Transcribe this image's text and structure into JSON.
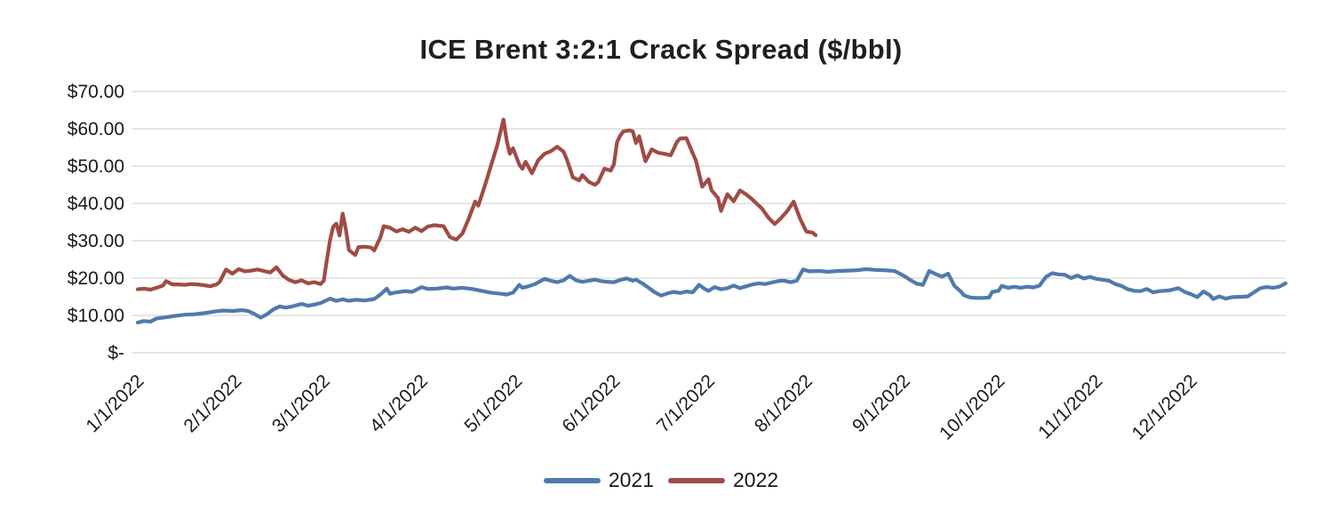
{
  "chart_data": {
    "type": "line",
    "title": "ICE Brent 3:2:1 Crack Spread ($/bbl)",
    "xlabel": "",
    "ylabel": "",
    "ylim": [
      0,
      70
    ],
    "grid": "horizontal-only",
    "legend_position": "bottom-center",
    "colors": {
      "gridline": "#d6d6d6",
      "axis_text": "#1a1a1a",
      "title_text": "#1f1f1f",
      "background": "#ffffff"
    },
    "y_ticks": [
      {
        "label": "$70.00",
        "value": 70
      },
      {
        "label": "$60.00",
        "value": 60
      },
      {
        "label": "$50.00",
        "value": 50
      },
      {
        "label": "$40.00",
        "value": 40
      },
      {
        "label": "$30.00",
        "value": 30
      },
      {
        "label": "$20.00",
        "value": 20
      },
      {
        "label": "$10.00",
        "value": 10
      },
      {
        "label": "$-",
        "value": 0
      }
    ],
    "x_ticks": [
      {
        "label": "1/1/2022",
        "day": 0
      },
      {
        "label": "2/1/2022",
        "day": 31
      },
      {
        "label": "3/1/2022",
        "day": 59
      },
      {
        "label": "4/1/2022",
        "day": 90
      },
      {
        "label": "5/1/2022",
        "day": 120
      },
      {
        "label": "6/1/2022",
        "day": 151
      },
      {
        "label": "7/1/2022",
        "day": 181
      },
      {
        "label": "8/1/2022",
        "day": 212
      },
      {
        "label": "9/1/2022",
        "day": 243
      },
      {
        "label": "10/1/2022",
        "day": 273
      },
      {
        "label": "11/1/2022",
        "day": 304
      },
      {
        "label": "12/1/2022",
        "day": 334
      }
    ],
    "x_domain_days": [
      0,
      364
    ],
    "series": [
      {
        "name": "2021",
        "color": "#4f7aad",
        "points": [
          [
            0,
            8.1
          ],
          [
            2,
            8.5
          ],
          [
            4,
            8.3
          ],
          [
            6,
            9.2
          ],
          [
            9,
            9.5
          ],
          [
            12,
            9.9
          ],
          [
            15,
            10.2
          ],
          [
            18,
            10.3
          ],
          [
            21,
            10.6
          ],
          [
            24,
            11.0
          ],
          [
            27,
            11.3
          ],
          [
            30,
            11.2
          ],
          [
            33,
            11.4
          ],
          [
            35,
            11.2
          ],
          [
            37,
            10.4
          ],
          [
            39,
            9.4
          ],
          [
            41,
            10.3
          ],
          [
            43,
            11.6
          ],
          [
            45,
            12.4
          ],
          [
            47,
            12.1
          ],
          [
            49,
            12.4
          ],
          [
            52,
            13.1
          ],
          [
            54,
            12.6
          ],
          [
            56,
            12.9
          ],
          [
            58,
            13.3
          ],
          [
            61,
            14.5
          ],
          [
            63,
            13.9
          ],
          [
            65,
            14.3
          ],
          [
            67,
            13.9
          ],
          [
            69,
            14.2
          ],
          [
            72,
            14.0
          ],
          [
            75,
            14.4
          ],
          [
            77,
            15.6
          ],
          [
            79,
            17.2
          ],
          [
            80,
            15.8
          ],
          [
            82,
            16.2
          ],
          [
            85,
            16.5
          ],
          [
            87,
            16.3
          ],
          [
            90,
            17.6
          ],
          [
            92,
            17.1
          ],
          [
            95,
            17.2
          ],
          [
            98,
            17.5
          ],
          [
            100,
            17.2
          ],
          [
            103,
            17.4
          ],
          [
            106,
            17.1
          ],
          [
            109,
            16.6
          ],
          [
            112,
            16.1
          ],
          [
            115,
            15.8
          ],
          [
            117,
            15.6
          ],
          [
            119,
            16.1
          ],
          [
            121,
            18.2
          ],
          [
            122,
            17.4
          ],
          [
            124,
            17.8
          ],
          [
            126,
            18.4
          ],
          [
            128,
            19.3
          ],
          [
            129,
            19.8
          ],
          [
            131,
            19.3
          ],
          [
            133,
            18.9
          ],
          [
            135,
            19.4
          ],
          [
            137,
            20.6
          ],
          [
            139,
            19.4
          ],
          [
            141,
            19.0
          ],
          [
            143,
            19.3
          ],
          [
            145,
            19.6
          ],
          [
            147,
            19.2
          ],
          [
            149,
            19.0
          ],
          [
            151,
            18.9
          ],
          [
            153,
            19.5
          ],
          [
            155,
            19.9
          ],
          [
            157,
            19.3
          ],
          [
            158,
            19.6
          ],
          [
            160,
            18.6
          ],
          [
            162,
            17.4
          ],
          [
            164,
            16.2
          ],
          [
            166,
            15.3
          ],
          [
            168,
            15.9
          ],
          [
            170,
            16.3
          ],
          [
            172,
            16.0
          ],
          [
            174,
            16.4
          ],
          [
            176,
            16.2
          ],
          [
            178,
            18.2
          ],
          [
            180,
            17.0
          ],
          [
            181,
            16.6
          ],
          [
            183,
            17.6
          ],
          [
            185,
            17.0
          ],
          [
            187,
            17.3
          ],
          [
            189,
            18.0
          ],
          [
            191,
            17.3
          ],
          [
            193,
            17.8
          ],
          [
            195,
            18.3
          ],
          [
            197,
            18.6
          ],
          [
            199,
            18.4
          ],
          [
            201,
            18.8
          ],
          [
            203,
            19.2
          ],
          [
            205,
            19.3
          ],
          [
            207,
            18.9
          ],
          [
            209,
            19.3
          ],
          [
            211,
            22.3
          ],
          [
            213,
            21.8
          ],
          [
            216,
            21.9
          ],
          [
            219,
            21.7
          ],
          [
            222,
            21.9
          ],
          [
            225,
            22.0
          ],
          [
            228,
            22.1
          ],
          [
            231,
            22.4
          ],
          [
            234,
            22.2
          ],
          [
            237,
            22.1
          ],
          [
            240,
            21.9
          ],
          [
            243,
            20.6
          ],
          [
            245,
            19.5
          ],
          [
            247,
            18.5
          ],
          [
            249,
            18.2
          ],
          [
            251,
            21.9
          ],
          [
            253,
            21.1
          ],
          [
            255,
            20.4
          ],
          [
            257,
            21.2
          ],
          [
            258,
            19.5
          ],
          [
            259,
            17.9
          ],
          [
            261,
            16.4
          ],
          [
            262,
            15.4
          ],
          [
            264,
            14.8
          ],
          [
            266,
            14.7
          ],
          [
            268,
            14.7
          ],
          [
            270,
            14.8
          ],
          [
            271,
            16.3
          ],
          [
            273,
            16.6
          ],
          [
            274,
            17.9
          ],
          [
            276,
            17.4
          ],
          [
            278,
            17.7
          ],
          [
            280,
            17.4
          ],
          [
            282,
            17.7
          ],
          [
            284,
            17.5
          ],
          [
            286,
            18.0
          ],
          [
            288,
            20.3
          ],
          [
            290,
            21.3
          ],
          [
            292,
            21.0
          ],
          [
            294,
            20.9
          ],
          [
            296,
            20.0
          ],
          [
            298,
            20.7
          ],
          [
            300,
            19.9
          ],
          [
            302,
            20.3
          ],
          [
            304,
            19.8
          ],
          [
            308,
            19.3
          ],
          [
            310,
            18.4
          ],
          [
            312,
            17.9
          ],
          [
            314,
            17.0
          ],
          [
            316,
            16.6
          ],
          [
            318,
            16.5
          ],
          [
            320,
            17.1
          ],
          [
            322,
            16.2
          ],
          [
            324,
            16.5
          ],
          [
            327,
            16.7
          ],
          [
            330,
            17.3
          ],
          [
            332,
            16.3
          ],
          [
            334,
            15.7
          ],
          [
            336,
            14.9
          ],
          [
            338,
            16.4
          ],
          [
            340,
            15.4
          ],
          [
            341,
            14.4
          ],
          [
            343,
            15.1
          ],
          [
            345,
            14.5
          ],
          [
            347,
            14.9
          ],
          [
            350,
            15.0
          ],
          [
            352,
            15.1
          ],
          [
            354,
            16.2
          ],
          [
            356,
            17.3
          ],
          [
            358,
            17.6
          ],
          [
            360,
            17.4
          ],
          [
            362,
            17.7
          ],
          [
            364,
            18.6
          ]
        ]
      },
      {
        "name": "2022",
        "color": "#a04b45",
        "points": [
          [
            0,
            17.0
          ],
          [
            2,
            17.2
          ],
          [
            4,
            16.9
          ],
          [
            6,
            17.4
          ],
          [
            8,
            18.0
          ],
          [
            9,
            19.2
          ],
          [
            11,
            18.3
          ],
          [
            13,
            18.3
          ],
          [
            15,
            18.2
          ],
          [
            17,
            18.4
          ],
          [
            19,
            18.3
          ],
          [
            21,
            18.1
          ],
          [
            23,
            17.8
          ],
          [
            25,
            18.3
          ],
          [
            26,
            19.0
          ],
          [
            28,
            22.3
          ],
          [
            30,
            21.2
          ],
          [
            32,
            22.4
          ],
          [
            34,
            21.8
          ],
          [
            36,
            22.0
          ],
          [
            38,
            22.3
          ],
          [
            40,
            21.9
          ],
          [
            42,
            21.5
          ],
          [
            44,
            22.9
          ],
          [
            46,
            20.7
          ],
          [
            48,
            19.5
          ],
          [
            50,
            18.9
          ],
          [
            52,
            19.4
          ],
          [
            54,
            18.6
          ],
          [
            56,
            18.9
          ],
          [
            58,
            18.4
          ],
          [
            59,
            19.3
          ],
          [
            60,
            25.0
          ],
          [
            61,
            30.2
          ],
          [
            62,
            33.8
          ],
          [
            63,
            34.6
          ],
          [
            64,
            31.4
          ],
          [
            65,
            37.3
          ],
          [
            66,
            33.0
          ],
          [
            67,
            27.5
          ],
          [
            69,
            26.2
          ],
          [
            70,
            28.3
          ],
          [
            72,
            28.4
          ],
          [
            74,
            28.2
          ],
          [
            75,
            27.4
          ],
          [
            77,
            31.0
          ],
          [
            78,
            33.9
          ],
          [
            80,
            33.5
          ],
          [
            82,
            32.5
          ],
          [
            84,
            33.1
          ],
          [
            86,
            32.4
          ],
          [
            88,
            33.5
          ],
          [
            90,
            32.6
          ],
          [
            92,
            33.8
          ],
          [
            94,
            34.2
          ],
          [
            97,
            33.9
          ],
          [
            99,
            31.0
          ],
          [
            101,
            30.3
          ],
          [
            103,
            32.0
          ],
          [
            105,
            36.0
          ],
          [
            107,
            40.5
          ],
          [
            108,
            39.4
          ],
          [
            110,
            44.5
          ],
          [
            112,
            50.0
          ],
          [
            114,
            55.5
          ],
          [
            116,
            62.5
          ],
          [
            117,
            56.9
          ],
          [
            118,
            53.3
          ],
          [
            119,
            54.8
          ],
          [
            121,
            50.4
          ],
          [
            122,
            49.3
          ],
          [
            123,
            51.2
          ],
          [
            125,
            48.1
          ],
          [
            127,
            51.6
          ],
          [
            129,
            53.3
          ],
          [
            131,
            54.0
          ],
          [
            133,
            55.2
          ],
          [
            135,
            53.9
          ],
          [
            136,
            52.0
          ],
          [
            138,
            47.0
          ],
          [
            140,
            46.2
          ],
          [
            141,
            47.6
          ],
          [
            143,
            45.8
          ],
          [
            145,
            45.0
          ],
          [
            146,
            45.7
          ],
          [
            148,
            49.3
          ],
          [
            150,
            48.8
          ],
          [
            151,
            50.5
          ],
          [
            152,
            56.4
          ],
          [
            153,
            58.2
          ],
          [
            154,
            59.3
          ],
          [
            156,
            59.6
          ],
          [
            157,
            59.3
          ],
          [
            158,
            56.2
          ],
          [
            159,
            58.0
          ],
          [
            161,
            51.3
          ],
          [
            163,
            54.5
          ],
          [
            165,
            53.6
          ],
          [
            167,
            53.3
          ],
          [
            169,
            52.9
          ],
          [
            171,
            56.5
          ],
          [
            172,
            57.4
          ],
          [
            174,
            57.5
          ],
          [
            175,
            55.4
          ],
          [
            177,
            51.5
          ],
          [
            179,
            44.5
          ],
          [
            181,
            46.5
          ],
          [
            182,
            43.5
          ],
          [
            184,
            41.5
          ],
          [
            185,
            38.0
          ],
          [
            187,
            42.5
          ],
          [
            189,
            40.6
          ],
          [
            191,
            43.5
          ],
          [
            193,
            42.4
          ],
          [
            195,
            41.0
          ],
          [
            198,
            38.6
          ],
          [
            200,
            36.2
          ],
          [
            202,
            34.5
          ],
          [
            204,
            36.1
          ],
          [
            206,
            38.0
          ],
          [
            208,
            40.5
          ],
          [
            210,
            36.0
          ],
          [
            212,
            32.5
          ],
          [
            214,
            32.2
          ],
          [
            215,
            31.5
          ]
        ]
      }
    ]
  }
}
